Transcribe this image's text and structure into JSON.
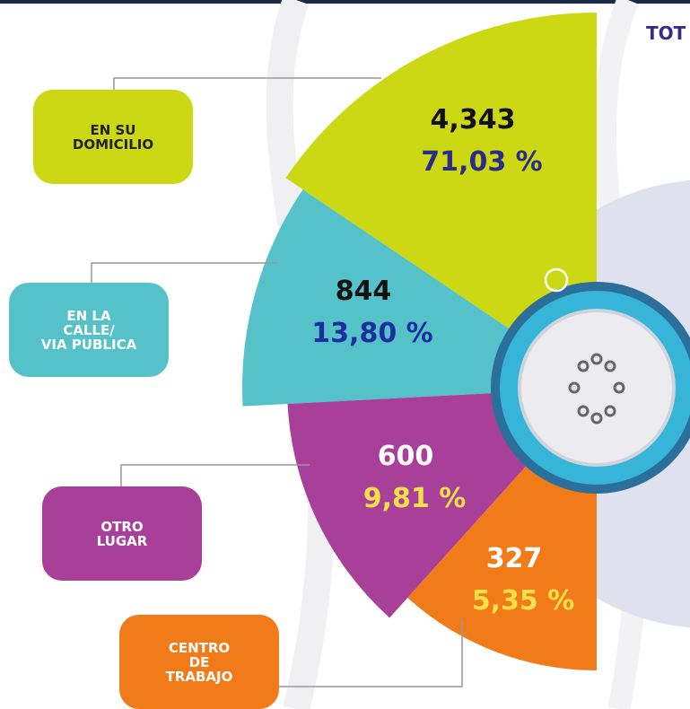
{
  "chart_data": {
    "type": "pie",
    "title": "TOT",
    "categories": [
      "EN SU\nDOMICILIO",
      "EN LA\nCALLE/\nVIA PUBLICA",
      "OTRO\nLUGAR",
      "CENTRO\nDE\nTRABAJO"
    ],
    "values": [
      4343,
      844,
      600,
      327
    ],
    "value_labels": [
      "4,343",
      "844",
      "600",
      "327"
    ],
    "percentages": [
      71.03,
      13.8,
      9.81,
      5.35
    ],
    "percentage_labels": [
      "71,03 %",
      "13,80 %",
      "9,81 %",
      "5,35 %"
    ],
    "colors": [
      "#cdd814",
      "#55c2ca",
      "#a8409a",
      "#f07b18"
    ]
  }
}
